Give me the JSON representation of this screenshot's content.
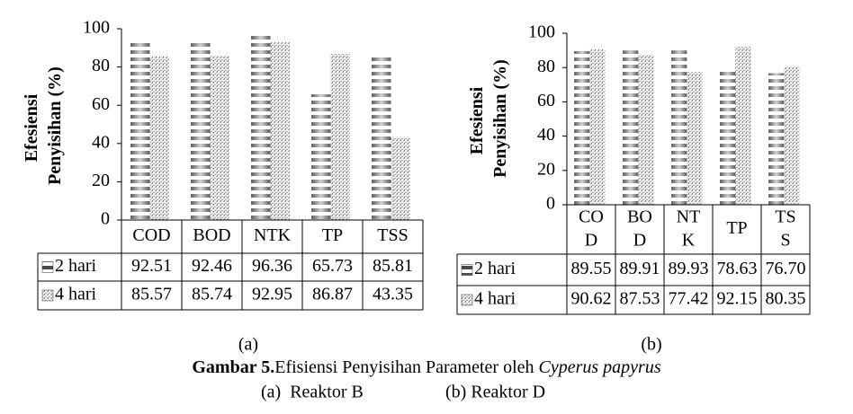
{
  "chart_data": [
    {
      "type": "bar",
      "label": "(a)",
      "ylabel": "Efesiensi Penyisihan (%)",
      "categories": [
        "COD",
        "BOD",
        "NTK",
        "TP",
        "TSS"
      ],
      "series": [
        {
          "name": "2 hari",
          "color": "#4a4a4a",
          "values": [
            92.51,
            92.46,
            96.36,
            65.73,
            85.81
          ],
          "value_labels": [
            "92.51",
            "92.46",
            "96.36",
            "65.73",
            "85.81"
          ]
        },
        {
          "name": "4 hari",
          "color": "#a8a8a8",
          "values": [
            85.57,
            85.74,
            92.95,
            86.87,
            43.35
          ],
          "value_labels": [
            "85.57",
            "85.74",
            "92.95",
            "86.87",
            "43.35"
          ]
        }
      ],
      "ylim": [
        0,
        100
      ],
      "yticks": [
        0,
        20,
        40,
        60,
        80,
        100
      ],
      "grid": false
    },
    {
      "type": "bar",
      "label": "(b)",
      "ylabel": "Efesiensi Penyisihan (%)",
      "categories": [
        "COD",
        "BOD",
        "NTK",
        "TP",
        "TSS"
      ],
      "series": [
        {
          "name": "2 hari",
          "color": "#4a4a4a",
          "values": [
            89.55,
            89.91,
            89.93,
            78.63,
            76.7
          ],
          "value_labels": [
            "89.55",
            "89.91",
            "89.93",
            "78.63",
            "76.70"
          ]
        },
        {
          "name": "4 hari",
          "color": "#a8a8a8",
          "values": [
            90.62,
            87.53,
            77.42,
            92.15,
            80.35
          ],
          "value_labels": [
            "90.62",
            "87.53",
            "77.42",
            "92.15",
            "80.35"
          ]
        }
      ],
      "ylim": [
        0,
        100
      ],
      "yticks": [
        0,
        20,
        40,
        60,
        80,
        100
      ],
      "grid": false
    }
  ],
  "caption": {
    "prefix": "Gambar 5.",
    "text": "Efisiensi Penyisihan Parameter oleh ",
    "italic": "Cyperus papyrus"
  },
  "subcaption": [
    "(a)  Reaktor B",
    "(b) Reaktor D"
  ]
}
